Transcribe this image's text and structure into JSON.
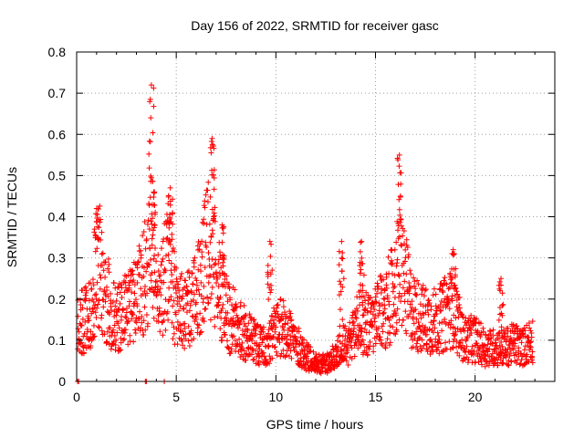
{
  "chart_data": {
    "type": "scatter",
    "title": "Day 156 of 2022, SRMTID for receiver gasc",
    "xlabel": "GPS time / hours",
    "ylabel": "SRMTID / TECUs",
    "xlim": [
      0,
      24
    ],
    "ylim": [
      0,
      0.8
    ],
    "xticks": [
      0,
      5,
      10,
      15,
      20
    ],
    "yticks": [
      0,
      0.1,
      0.2,
      0.3,
      0.4,
      0.5,
      0.6,
      0.7,
      0.8
    ],
    "xtick_labels": [
      "0",
      "5",
      "10",
      "15",
      "20"
    ],
    "ytick_labels": [
      "0",
      "0.1",
      "0.2",
      "0.3",
      "0.4",
      "0.5",
      "0.6",
      "0.7",
      "0.8"
    ],
    "grid": true,
    "marker": "plus",
    "color": "#ff0000",
    "envelope": [
      [
        0.0,
        0.12
      ],
      [
        0.4,
        0.15
      ],
      [
        0.8,
        0.15
      ],
      [
        1.0,
        0.3
      ],
      [
        1.5,
        0.2
      ],
      [
        2.0,
        0.14
      ],
      [
        2.5,
        0.17
      ],
      [
        3.0,
        0.19
      ],
      [
        3.5,
        0.26
      ],
      [
        3.8,
        0.33
      ],
      [
        4.2,
        0.19
      ],
      [
        4.6,
        0.31
      ],
      [
        5.0,
        0.17
      ],
      [
        5.5,
        0.16
      ],
      [
        6.0,
        0.2
      ],
      [
        6.5,
        0.32
      ],
      [
        6.9,
        0.3
      ],
      [
        7.2,
        0.22
      ],
      [
        7.6,
        0.15
      ],
      [
        8.0,
        0.14
      ],
      [
        8.5,
        0.11
      ],
      [
        9.0,
        0.09
      ],
      [
        9.5,
        0.08
      ],
      [
        10.0,
        0.12
      ],
      [
        10.5,
        0.13
      ],
      [
        11.0,
        0.09
      ],
      [
        11.5,
        0.06
      ],
      [
        12.0,
        0.045
      ],
      [
        12.5,
        0.04
      ],
      [
        13.0,
        0.06
      ],
      [
        13.3,
        0.1
      ],
      [
        13.6,
        0.08
      ],
      [
        14.2,
        0.15
      ],
      [
        14.8,
        0.13
      ],
      [
        15.4,
        0.17
      ],
      [
        15.9,
        0.21
      ],
      [
        16.3,
        0.27
      ],
      [
        16.8,
        0.17
      ],
      [
        17.3,
        0.15
      ],
      [
        17.8,
        0.14
      ],
      [
        18.3,
        0.15
      ],
      [
        18.9,
        0.18
      ],
      [
        19.4,
        0.1
      ],
      [
        20.0,
        0.1
      ],
      [
        20.5,
        0.08
      ],
      [
        21.0,
        0.08
      ],
      [
        21.5,
        0.08
      ],
      [
        22.0,
        0.09
      ],
      [
        22.4,
        0.08
      ],
      [
        22.8,
        0.1
      ]
    ],
    "bursts": [
      {
        "x": 1.0,
        "y": 0.42
      },
      {
        "x": 3.75,
        "y": 0.72
      },
      {
        "x": 3.9,
        "y": 0.46
      },
      {
        "x": 4.7,
        "y": 0.47
      },
      {
        "x": 6.8,
        "y": 0.59
      },
      {
        "x": 7.3,
        "y": 0.38
      },
      {
        "x": 9.7,
        "y": 0.34
      },
      {
        "x": 13.3,
        "y": 0.34
      },
      {
        "x": 14.3,
        "y": 0.34
      },
      {
        "x": 16.2,
        "y": 0.55
      },
      {
        "x": 18.9,
        "y": 0.32
      },
      {
        "x": 21.3,
        "y": 0.25
      }
    ],
    "zero_points": [
      {
        "x": 0.05,
        "y": 0.0
      },
      {
        "x": 0.1,
        "y": 0.0
      },
      {
        "x": 3.45,
        "y": 0.0
      },
      {
        "x": 3.5,
        "y": 0.0
      },
      {
        "x": 4.4,
        "y": 0.0
      }
    ]
  }
}
